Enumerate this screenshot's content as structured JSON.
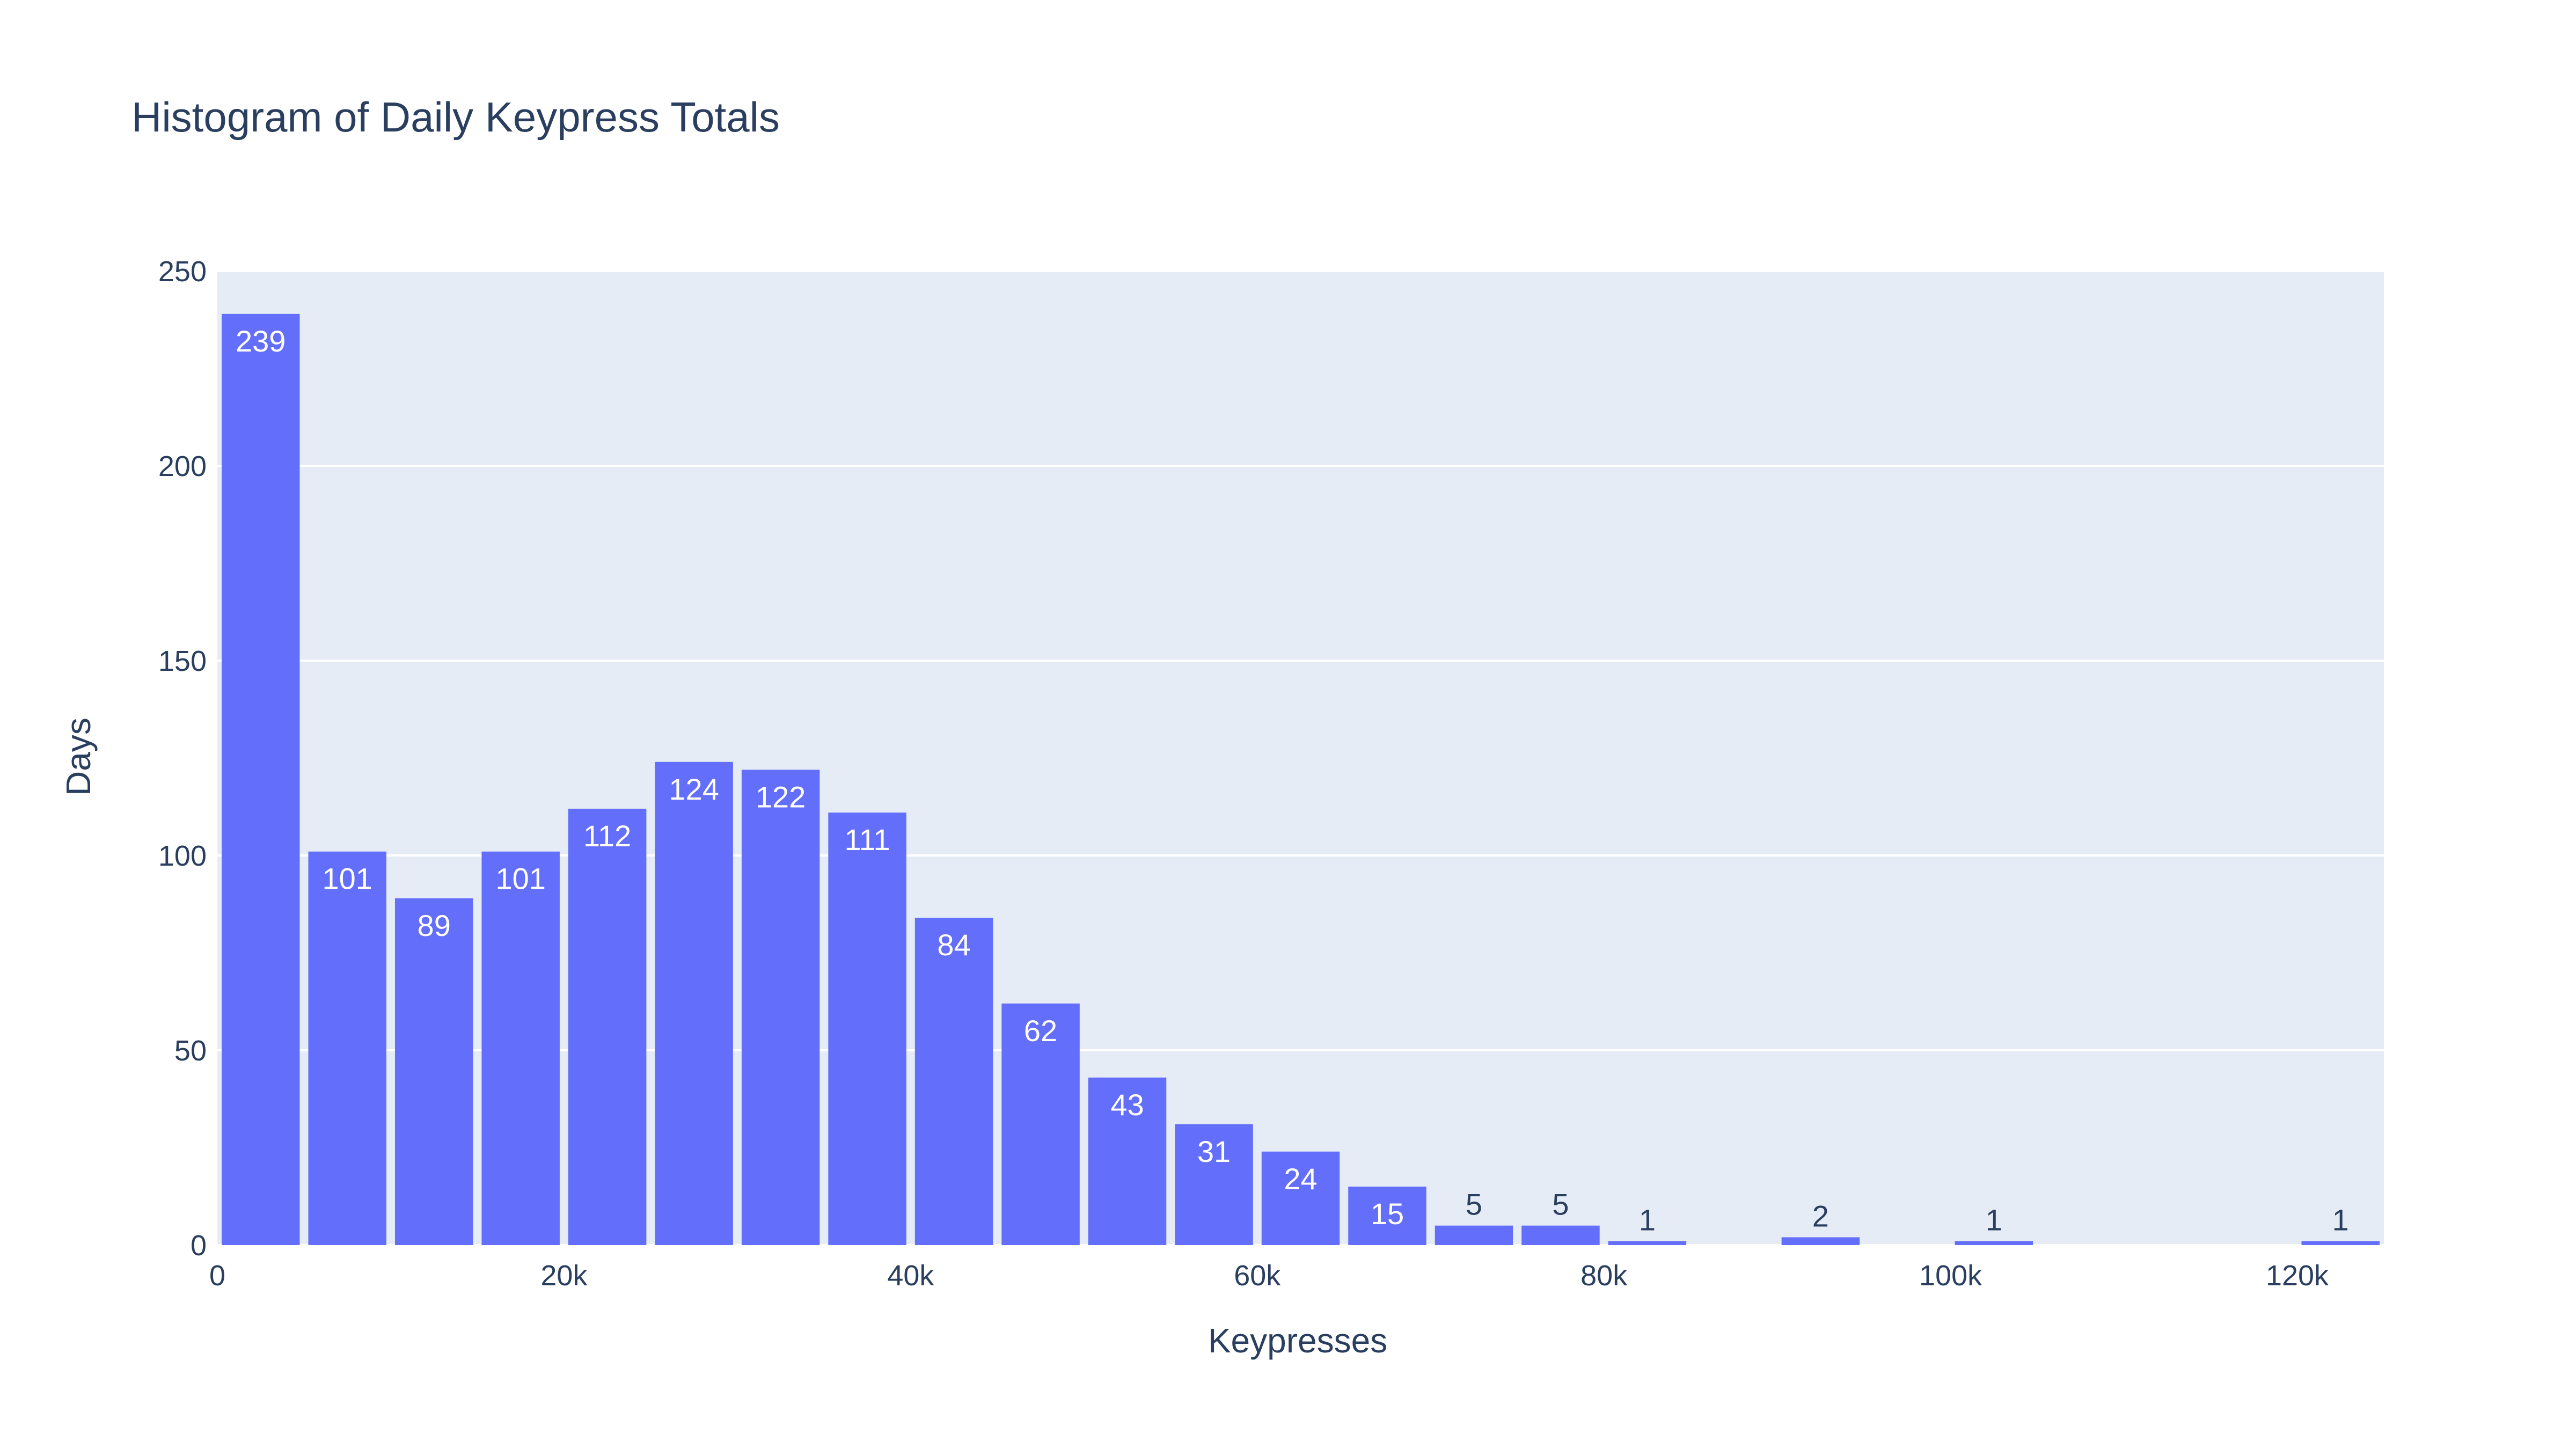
{
  "chart_data": {
    "type": "bar",
    "title": "Histogram of Daily Keypress Totals",
    "xlabel": "Keypresses",
    "ylabel": "Days",
    "bin_width": 5000,
    "xlim": [
      0,
      125000
    ],
    "ylim": [
      0,
      250
    ],
    "x_ticks": [
      {
        "value": 0,
        "label": "0"
      },
      {
        "value": 20000,
        "label": "20k"
      },
      {
        "value": 40000,
        "label": "40k"
      },
      {
        "value": 60000,
        "label": "60k"
      },
      {
        "value": 80000,
        "label": "80k"
      },
      {
        "value": 100000,
        "label": "100k"
      },
      {
        "value": 120000,
        "label": "120k"
      }
    ],
    "y_ticks": [
      {
        "value": 0,
        "label": "0"
      },
      {
        "value": 50,
        "label": "50"
      },
      {
        "value": 100,
        "label": "100"
      },
      {
        "value": 150,
        "label": "150"
      },
      {
        "value": 200,
        "label": "200"
      },
      {
        "value": 250,
        "label": "250"
      }
    ],
    "grid": true,
    "legend": "none",
    "bins": [
      {
        "x0": 0,
        "x1": 5000,
        "count": 239
      },
      {
        "x0": 5000,
        "x1": 10000,
        "count": 101
      },
      {
        "x0": 10000,
        "x1": 15000,
        "count": 89
      },
      {
        "x0": 15000,
        "x1": 20000,
        "count": 101
      },
      {
        "x0": 20000,
        "x1": 25000,
        "count": 112
      },
      {
        "x0": 25000,
        "x1": 30000,
        "count": 124
      },
      {
        "x0": 30000,
        "x1": 35000,
        "count": 122
      },
      {
        "x0": 35000,
        "x1": 40000,
        "count": 111
      },
      {
        "x0": 40000,
        "x1": 45000,
        "count": 84
      },
      {
        "x0": 45000,
        "x1": 50000,
        "count": 62
      },
      {
        "x0": 50000,
        "x1": 55000,
        "count": 43
      },
      {
        "x0": 55000,
        "x1": 60000,
        "count": 31
      },
      {
        "x0": 60000,
        "x1": 65000,
        "count": 24
      },
      {
        "x0": 65000,
        "x1": 70000,
        "count": 15
      },
      {
        "x0": 70000,
        "x1": 75000,
        "count": 5
      },
      {
        "x0": 75000,
        "x1": 80000,
        "count": 5
      },
      {
        "x0": 80000,
        "x1": 85000,
        "count": 1
      },
      {
        "x0": 90000,
        "x1": 95000,
        "count": 2
      },
      {
        "x0": 100000,
        "x1": 105000,
        "count": 1
      },
      {
        "x0": 120000,
        "x1": 125000,
        "count": 1
      }
    ],
    "colors": {
      "bar": "#636efa",
      "plot_bg": "#e5ecf6",
      "grid": "#ffffff",
      "text": "#2a3f5f",
      "label_inside": "#ffffff",
      "label_outside": "#2a3f5f"
    }
  }
}
